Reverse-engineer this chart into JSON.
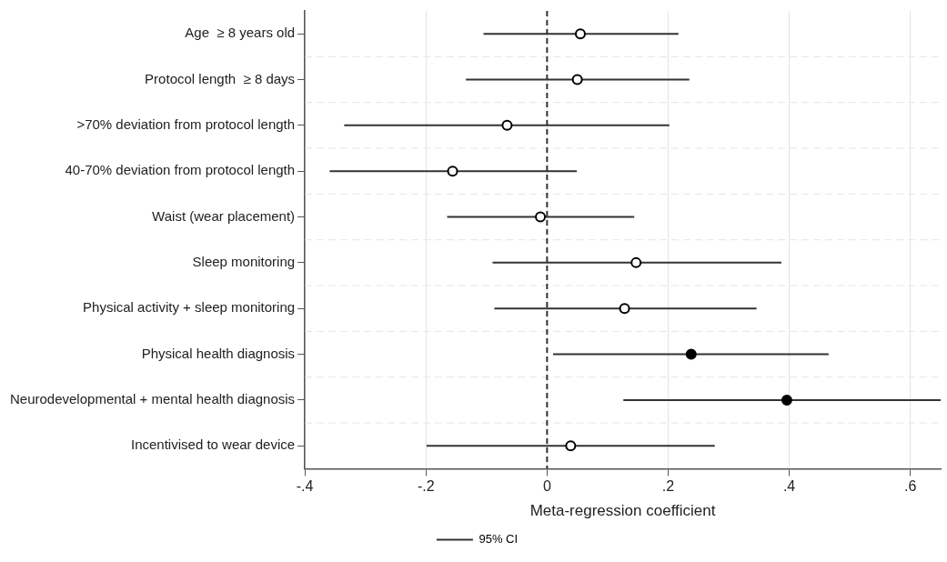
{
  "chart_data": {
    "type": "scatter",
    "orientation": "horizontal",
    "xlabel": "Meta-regression coefficient",
    "categories": [
      "Age  ≥ 8 years old",
      "Protocol length  ≥ 8 days",
      ">70% deviation from protocol length",
      "40-70% deviation from protocol length",
      "Waist (wear placement)",
      "Sleep monitoring",
      "Physical activity + sleep monitoring",
      "Physical health diagnosis",
      "Neurodevelopmental + mental health diagnosis",
      "Incentivised to wear device"
    ],
    "series": [
      {
        "name": "95% CI",
        "color": "#333333",
        "values": [
          0.055,
          0.05,
          -0.066,
          -0.156,
          -0.011,
          0.147,
          0.128,
          0.238,
          0.396,
          0.039
        ],
        "colors": [
          "#ffffff",
          "#ffffff",
          "#ffffff",
          "#ffffff",
          "#ffffff",
          "#ffffff",
          "#ffffff",
          "#000000",
          "#000000",
          "#ffffff"
        ],
        "errors": [
          [
            -0.105,
            0.217
          ],
          [
            -0.134,
            0.235
          ],
          [
            -0.335,
            0.202
          ],
          [
            -0.359,
            0.049
          ],
          [
            -0.165,
            0.144
          ],
          [
            -0.09,
            0.387
          ],
          [
            -0.087,
            0.346
          ],
          [
            0.01,
            0.465
          ],
          [
            0.126,
            0.65
          ],
          [
            -0.199,
            0.277
          ]
        ]
      }
    ],
    "xlim": [
      -0.4,
      0.65
    ],
    "xticks": [
      {
        "value": -0.4,
        "label": "-.4"
      },
      {
        "value": -0.2,
        "label": "-.2"
      },
      0,
      {
        "value": 0.2,
        "label": ".2"
      },
      {
        "value": 0.4,
        "label": ".4"
      },
      {
        "value": 0.6,
        "label": ".6"
      }
    ],
    "ref_lines": [
      {
        "axis": "x",
        "value": 0,
        "line_style": "dashed",
        "color": "#333333"
      }
    ],
    "grid": true,
    "legend": "bottom",
    "marker": "circle"
  }
}
